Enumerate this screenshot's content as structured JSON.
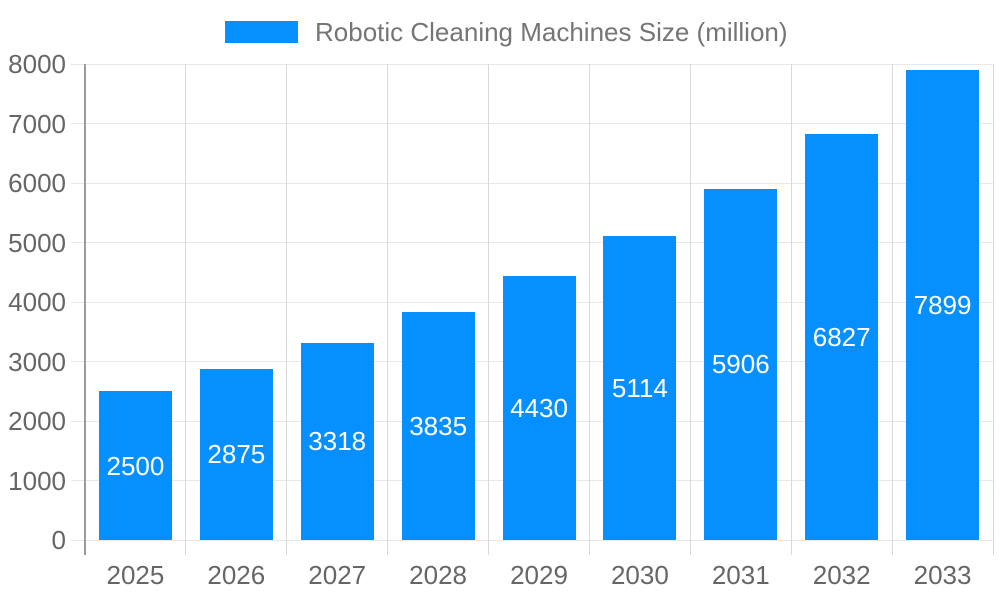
{
  "chart": {
    "legend": {
      "label": "Robotic Cleaning Machines Size (million)"
    }
  },
  "chart_data": {
    "type": "bar",
    "title": "Robotic Cleaning Machines Size (million)",
    "series_name": "Robotic Cleaning Machines Size (million)",
    "categories": [
      "2025",
      "2026",
      "2027",
      "2028",
      "2029",
      "2030",
      "2031",
      "2032",
      "2033"
    ],
    "values": [
      2500,
      2875,
      3318,
      3835,
      4430,
      5114,
      5906,
      6827,
      7899
    ],
    "xlabel": "",
    "ylabel": "",
    "ylim": [
      0,
      8000
    ],
    "yticks": [
      0,
      1000,
      2000,
      3000,
      4000,
      5000,
      6000,
      7000,
      8000
    ],
    "grid": true,
    "legend_position": "top-center",
    "value_labels": "inside-center-white",
    "colors": {
      "bar": "#0690ff",
      "grid_horizontal": "#e8e8e8",
      "grid_vertical": "#d9d9d9",
      "axis": "#9a9a9a",
      "tick_text": "#666666",
      "title_text": "#757575",
      "value_label_text": "#ffffff",
      "background": "#ffffff"
    }
  }
}
